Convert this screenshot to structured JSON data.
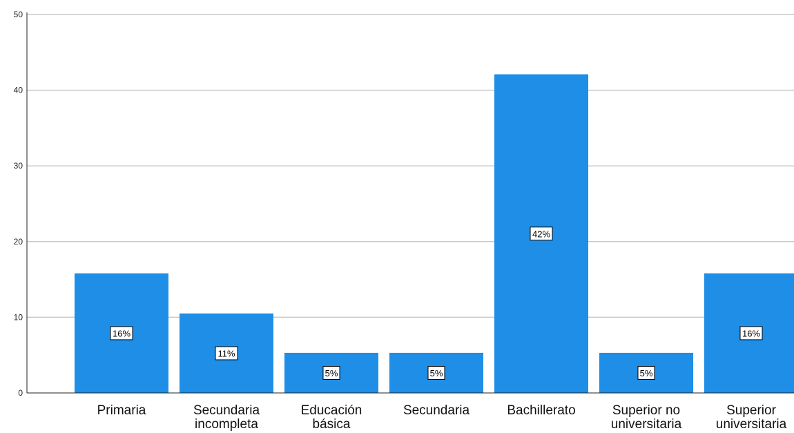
{
  "chart_data": {
    "type": "bar",
    "title": "",
    "xlabel": "",
    "ylabel": "",
    "categories": [
      [
        "Primaria"
      ],
      [
        "Secundaria",
        "incompleta"
      ],
      [
        "Educación",
        "básica"
      ],
      [
        "Secundaria"
      ],
      [
        "Bachillerato"
      ],
      [
        "Superior no",
        "universitaria"
      ],
      [
        "Superior",
        "universitaria"
      ]
    ],
    "values": [
      15.8,
      10.5,
      5.3,
      5.3,
      42.1,
      5.3,
      15.8
    ],
    "data_labels": [
      "16%",
      "11%",
      "5%",
      "5%",
      "42%",
      "5%",
      "16%"
    ],
    "ylim": [
      0,
      50
    ],
    "yticks": [
      "0",
      "10",
      "20",
      "30",
      "40",
      "50"
    ],
    "grid": true,
    "bar_color": "#1e8ee6",
    "grid_color": "#c8c8c8",
    "axis_color": "#222222"
  }
}
